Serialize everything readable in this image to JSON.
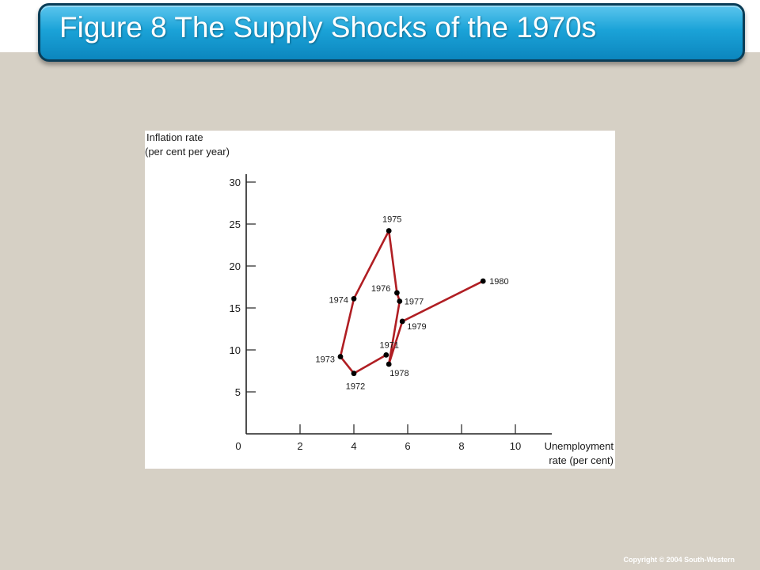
{
  "slide": {
    "title": "Figure 8 The Supply Shocks of the 1970s",
    "copyright": "Copyright © 2004  South-Western"
  },
  "colors": {
    "title_bar": "#1ba3d8",
    "background": "#d6d0c5",
    "series_line": "#b01e23",
    "point": "#000000"
  },
  "chart_data": {
    "type": "line",
    "ylabel_lines": [
      "Inflation rate",
      "(per cent per year)"
    ],
    "xlabel_lines": [
      "Unemployment",
      "rate (per cent)"
    ],
    "xlim": [
      0,
      11
    ],
    "ylim": [
      0,
      30
    ],
    "x_ticks": [
      0,
      2,
      4,
      6,
      8,
      10
    ],
    "y_ticks": [
      5,
      10,
      15,
      20,
      25,
      30
    ],
    "origin_label": "0",
    "grid": false,
    "series": [
      {
        "points": [
          {
            "label": "1971",
            "x": 5.2,
            "y": 9.4
          },
          {
            "label": "1972",
            "x": 4.0,
            "y": 7.2
          },
          {
            "label": "1973",
            "x": 3.5,
            "y": 9.2
          },
          {
            "label": "1974",
            "x": 4.0,
            "y": 16.1
          },
          {
            "label": "1975",
            "x": 5.3,
            "y": 24.2
          },
          {
            "label": "1976",
            "x": 5.6,
            "y": 16.8
          },
          {
            "label": "1977",
            "x": 5.7,
            "y": 15.8
          },
          {
            "label": "1978",
            "x": 5.3,
            "y": 8.3
          },
          {
            "label": "1979",
            "x": 5.8,
            "y": 13.4
          },
          {
            "label": "1980",
            "x": 8.8,
            "y": 18.2
          }
        ]
      }
    ]
  }
}
